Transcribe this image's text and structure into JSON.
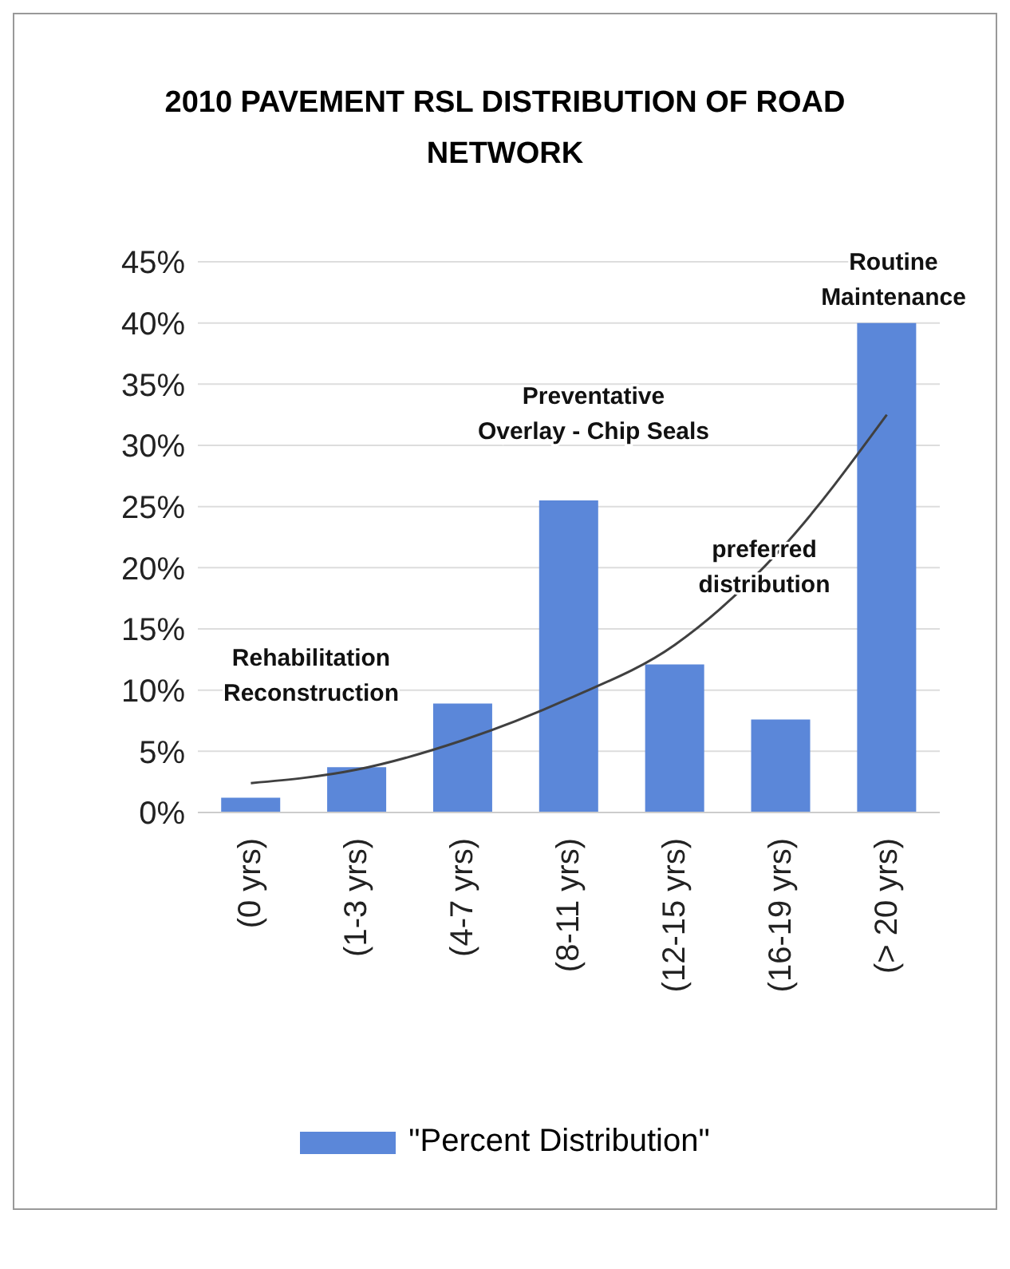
{
  "chart_data": {
    "type": "bar",
    "title": "2010 PAVEMENT RSL DISTRIBUTION OF ROAD NETWORK",
    "categories": [
      "(0 yrs)",
      "(1-3 yrs)",
      "(4-7 yrs)",
      "(8-11 yrs)",
      "(12-15 yrs)",
      "(16-19 yrs)",
      "(> 20 yrs)"
    ],
    "series": [
      {
        "name": "\"Percent Distribution\"",
        "color": "#5b87d9",
        "values": [
          1.2,
          3.7,
          8.9,
          25.5,
          12.1,
          7.6,
          40
        ]
      },
      {
        "type": "line",
        "color": "#404040",
        "values": [
          2.4,
          3.5,
          5.9,
          9.3,
          13.7,
          21.5,
          32.5
        ]
      }
    ],
    "ylim": [
      0,
      45
    ],
    "yticks": [
      {
        "value": 0,
        "label": "0%"
      },
      {
        "value": 5,
        "label": "5%"
      },
      {
        "value": 10,
        "label": "10%"
      },
      {
        "value": 15,
        "label": "15%"
      },
      {
        "value": 20,
        "label": "20%"
      },
      {
        "value": 25,
        "label": "25%"
      },
      {
        "value": 30,
        "label": "30%"
      },
      {
        "value": 35,
        "label": "35%"
      },
      {
        "value": 40,
        "label": "40%"
      },
      {
        "value": 45,
        "label": "45%"
      }
    ],
    "grid": "y",
    "legend": "bottom",
    "annotations": [
      "Rehabilitation\nReconstruction",
      "Preventative\nOverlay - Chip Seals",
      "preferred\ndistribution",
      "Routine\nMaintenance"
    ]
  }
}
